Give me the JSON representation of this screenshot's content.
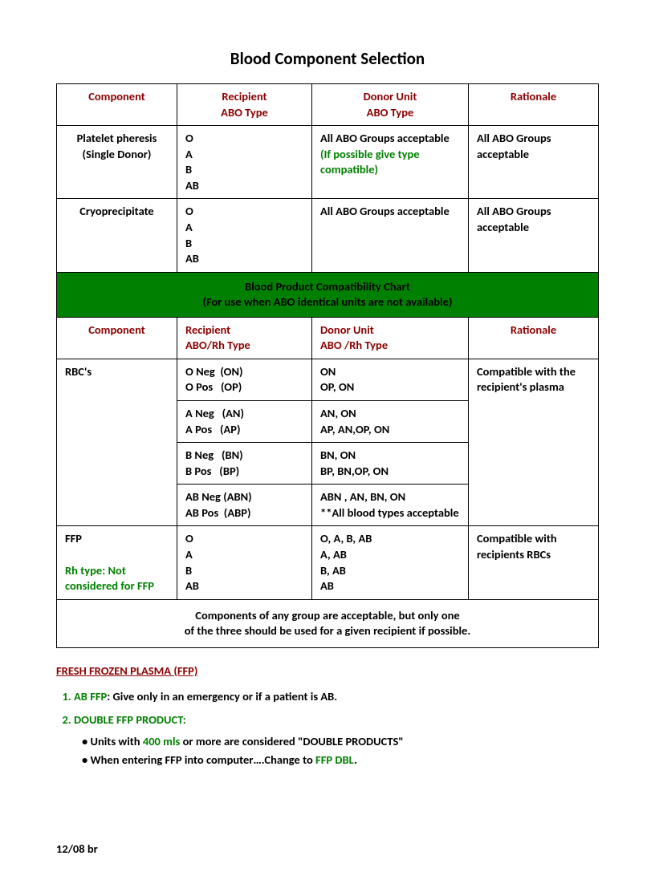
{
  "title": "Blood Component Selection",
  "header1": {
    "c1": "Component",
    "c2": "Recipient\nABO Type",
    "c3": "Donor Unit\nABO Type",
    "c4": "Rationale"
  },
  "row_platelet": {
    "component": "Platelet pheresis\n(Single Donor)",
    "recipient": "O\nA\nB\nAB",
    "donor_main": "All ABO Groups acceptable",
    "donor_note": "(If possible give type compatible)",
    "rationale": "All ABO Groups acceptable"
  },
  "row_cryo": {
    "component": "Cryoprecipitate",
    "recipient": "O\nA\nB\nAB",
    "donor": "All ABO Groups acceptable",
    "rationale": "All ABO Groups acceptable"
  },
  "banner": {
    "line1": "Blood Product Compatibility Chart",
    "line2": "(For use when ABO identical units are not available)"
  },
  "header2": {
    "c1": "Component",
    "c2": "Recipient\nABO/Rh Type",
    "c3": "Donor Unit\nABO /Rh Type",
    "c4": "Rationale"
  },
  "rbc": {
    "label": "RBC's",
    "rationale": "Compatible with the recipient's plasma",
    "r1_rec": "O Neg  (ON)\nO Pos   (OP)",
    "r1_don": "ON\nOP, ON",
    "r2_rec": "A Neg   (AN)\nA Pos   (AP)",
    "r2_don": "AN, ON\nAP, AN,OP, ON",
    "r3_rec": "B Neg   (BN)\nB Pos   (BP)",
    "r3_don": "BN, ON\nBP, BN,OP, ON",
    "r4_rec": "AB Neg (ABN)\nAB Pos  (ABP)",
    "r4_don": "ABN , AN, BN, ON\n**All blood types acceptable"
  },
  "ffp": {
    "label": "FFP",
    "note": "Rh type: Not considered for FFP",
    "recipient": "O\nA\nB\nAB",
    "donor": "O, A, B, AB\nA, AB\nB, AB\nAB",
    "rationale": "Compatible with recipients RBCs"
  },
  "footer_note": {
    "line1": "Components of any group are acceptable, but only one",
    "line2": "of the three should be used for a given recipient if possible."
  },
  "below": {
    "head": "FRESH FROZEN PLASMA  (FFP)",
    "item1_label": "AB FFP",
    "item1_text": ":   Give only in an emergency or if a patient is AB.",
    "item2_label": "DOUBLE FFP PRODUCT:",
    "item2_b1a": "• Units with ",
    "item2_b1b": "400 mls",
    "item2_b1c": " or more are considered \"DOUBLE PRODUCTS\"",
    "item2_b2a": "• When entering FFP into computer….Change to ",
    "item2_b2b": "FFP DBL",
    "item2_b2c": "."
  },
  "date": "12/08   br"
}
